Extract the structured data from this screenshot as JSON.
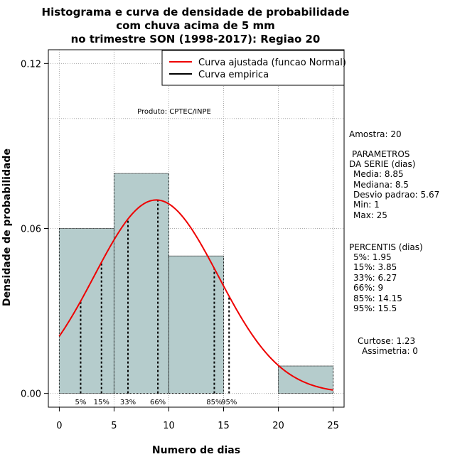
{
  "chart_data": {
    "type": "bar",
    "title_lines": [
      "Histograma e curva de densidade de probabilidade",
      "com chuva acima de 5 mm",
      "no trimestre SON (1998-2017): Regiao 20"
    ],
    "xlabel": "Numero de dias",
    "ylabel": "Densidade de probabilidade",
    "xlim": [
      -1,
      26
    ],
    "ylim": [
      -0.005,
      0.125
    ],
    "x_ticks": [
      0,
      5,
      10,
      15,
      20,
      25
    ],
    "y_ticks": [
      0.0,
      0.06,
      0.12
    ],
    "y_tick_labels": [
      "0.00",
      "0.06",
      "0.12"
    ],
    "grid": true,
    "grid_x": [
      0,
      5,
      10,
      15,
      20,
      25
    ],
    "grid_y": [
      0.0,
      0.06,
      0.1,
      0.12
    ],
    "bins": [
      {
        "start": 0,
        "end": 5,
        "density": 0.06
      },
      {
        "start": 5,
        "end": 10,
        "density": 0.08
      },
      {
        "start": 10,
        "end": 15,
        "density": 0.05
      },
      {
        "start": 15,
        "end": 20,
        "density": 0.0
      },
      {
        "start": 20,
        "end": 25,
        "density": 0.01
      }
    ],
    "normal_fit": {
      "mean": 8.85,
      "sd": 5.67,
      "x_from": 0,
      "x_to": 25
    },
    "percentile_lines": [
      {
        "label": "5%",
        "x": 1.95
      },
      {
        "label": "15%",
        "x": 3.85
      },
      {
        "label": "33%",
        "x": 6.27
      },
      {
        "label": "66%",
        "x": 9
      },
      {
        "label": "85%",
        "x": 14.15
      },
      {
        "label": "95%",
        "x": 15.5
      }
    ],
    "legend": {
      "position": "top-right",
      "entries": [
        {
          "label": "Curva ajustada (funcao Normal)",
          "color": "#ee0000"
        },
        {
          "label": "Curva empirica",
          "color": "#000000"
        }
      ]
    },
    "annotation": "Produto: CPTEC/INPE",
    "side_panel": [
      "Amostra: 20",
      " PARAMETROS",
      "DA SERIE (dias)",
      "Media: 8.85",
      "Mediana: 8.5",
      "Desvio padrao: 5.67",
      "Min: 1",
      "Max: 25",
      "PERCENTIS (dias)",
      "5%: 1.95",
      "15%: 3.85",
      "33%: 6.27",
      "66%: 9",
      "85%: 14.15",
      "95%: 15.5",
      "Curtose: 1.23",
      "Assimetria: 0"
    ],
    "colors": {
      "bar_fill": "#b5cccc",
      "bar_stroke": "#000000",
      "curve": "#ee0000",
      "grid": "#aaaaaa"
    }
  }
}
